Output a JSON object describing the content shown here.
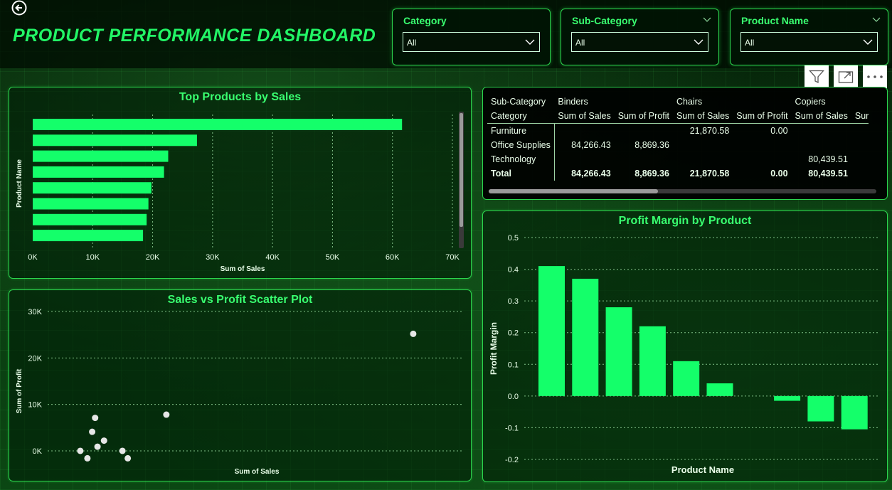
{
  "header": {
    "title": "PRODUCT PERFORMANCE DASHBOARD"
  },
  "slicers": [
    {
      "label": "Category",
      "value": "All"
    },
    {
      "label": "Sub-Category",
      "value": "All"
    },
    {
      "label": "Product Name",
      "value": "All"
    }
  ],
  "colors": {
    "accent": "#22f566",
    "bar": "#14ff6a",
    "panel_border": "#2cd64e",
    "grid": "#7fbf86"
  },
  "icons": [
    "back-arrow-icon",
    "filter-icon",
    "focus-mode-icon",
    "more-options-icon"
  ],
  "matrix": {
    "row_header_1": "Sub-Category",
    "row_header_2": "Category",
    "column_groups": [
      "Binders",
      "Chairs",
      "Copiers"
    ],
    "measures": [
      "Sum of Sales",
      "Sum of Profit",
      "Sum of Sales",
      "Sum of Profit",
      "Sum of Sales",
      "Sur"
    ],
    "rows": [
      {
        "label": "Furniture",
        "cells": [
          "",
          "",
          "21,870.58",
          "0.00",
          ""
        ]
      },
      {
        "label": "Office Supplies",
        "cells": [
          "84,266.43",
          "8,869.36",
          "",
          "",
          ""
        ]
      },
      {
        "label": "Technology",
        "cells": [
          "",
          "",
          "",
          "",
          "80,439.51"
        ]
      }
    ],
    "total": {
      "label": "Total",
      "cells": [
        "84,266.43",
        "8,869.36",
        "21,870.58",
        "0.00",
        "80,439.51"
      ]
    }
  },
  "chart_data": [
    {
      "type": "bar",
      "orientation": "horizontal",
      "title": "Top Products by Sales",
      "xlabel": "Sum of Sales",
      "ylabel": "Product Name",
      "xlim": [
        0,
        70000
      ],
      "xticks": [
        "0K",
        "10K",
        "20K",
        "30K",
        "40K",
        "50K",
        "60K",
        "70K"
      ],
      "values": [
        61600,
        27400,
        22600,
        21900,
        19800,
        19300,
        19000,
        18400
      ]
    },
    {
      "type": "scatter",
      "title": "Sales vs Profit Scatter Plot",
      "xlabel": "Sum of Sales",
      "ylabel": "Sum of Profit",
      "yticks": [
        "30K",
        "20K",
        "10K",
        "0K"
      ],
      "ylim": [
        -2000,
        32000
      ],
      "xlim": [
        0,
        70000
      ],
      "points": [
        {
          "x": 61600,
          "y": 25200
        },
        {
          "x": 20000,
          "y": 7800
        },
        {
          "x": 8000,
          "y": 7100
        },
        {
          "x": 7500,
          "y": 4100
        },
        {
          "x": 9500,
          "y": 2200
        },
        {
          "x": 8400,
          "y": 900
        },
        {
          "x": 5500,
          "y": 0
        },
        {
          "x": 12600,
          "y": 0
        },
        {
          "x": 6700,
          "y": -1600
        },
        {
          "x": 13500,
          "y": -1600
        }
      ]
    },
    {
      "type": "bar",
      "title": "Profit Margin by Product",
      "xlabel": "Product Name",
      "ylabel": "Profit Margin",
      "ylim": [
        -0.2,
        0.5
      ],
      "yticks": [
        "0.5",
        "0.4",
        "0.3",
        "0.2",
        "0.1",
        "0.0",
        "-0.1",
        "-0.2"
      ],
      "values": [
        0.41,
        0.37,
        0.28,
        0.22,
        0.11,
        0.04,
        0.0,
        -0.015,
        -0.08,
        -0.105
      ]
    }
  ]
}
